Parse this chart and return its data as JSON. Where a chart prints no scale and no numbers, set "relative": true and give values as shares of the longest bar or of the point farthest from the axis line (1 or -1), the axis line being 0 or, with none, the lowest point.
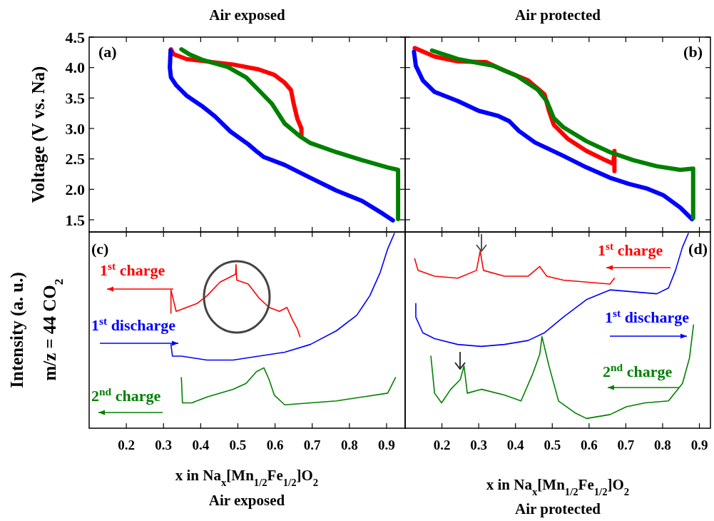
{
  "chart_data": [
    {
      "type": "line",
      "title": "Air exposed",
      "ylabel": "Voltage (V vs. Na)",
      "annotations": [
        "(a)"
      ],
      "xlim": [
        0.1,
        0.95
      ],
      "xticks": [
        0.2,
        0.3,
        0.4,
        0.5,
        0.6,
        0.7,
        0.8,
        0.9
      ],
      "ylim": [
        1.3,
        4.5
      ],
      "yticks": [
        {
          "value": 1.5,
          "label": "1.5"
        },
        {
          "value": 2,
          "label": "2.0"
        },
        {
          "value": 2.5,
          "label": "2.5"
        },
        {
          "value": 3,
          "label": "3.0"
        },
        {
          "value": 3.5,
          "label": "3.5"
        },
        {
          "value": 4,
          "label": "4.0"
        },
        {
          "value": 4.5,
          "label": "4.5"
        }
      ],
      "tick_labels": "y",
      "series": [
        {
          "color": "#ff0000",
          "x": [
            0.32,
            0.327,
            0.362,
            0.417,
            0.487,
            0.556,
            0.598,
            0.626,
            0.643,
            0.65,
            0.66,
            0.671,
            0.671
          ],
          "values": [
            4.3,
            4.22,
            4.14,
            4.1,
            4.05,
            3.97,
            3.88,
            3.75,
            3.63,
            3.41,
            3.16,
            3.0,
            2.87
          ]
        },
        {
          "color": "#0000ff",
          "x": [
            0.319,
            0.317,
            0.32,
            0.334,
            0.362,
            0.403,
            0.438,
            0.48,
            0.528,
            0.553,
            0.57,
            0.626,
            0.695,
            0.765,
            0.834,
            0.89,
            0.917
          ],
          "values": [
            4.28,
            4.0,
            3.84,
            3.71,
            3.54,
            3.37,
            3.2,
            2.95,
            2.74,
            2.61,
            2.53,
            2.4,
            2.19,
            1.98,
            1.81,
            1.6,
            1.49
          ]
        },
        {
          "color": "#008000",
          "x": [
            0.931,
            0.931,
            0.903,
            0.834,
            0.765,
            0.695,
            0.667,
            0.626,
            0.591,
            0.556,
            0.522,
            0.473,
            0.403,
            0.369,
            0.348
          ],
          "values": [
            1.51,
            2.32,
            2.36,
            2.48,
            2.61,
            2.76,
            2.87,
            3.08,
            3.41,
            3.63,
            3.84,
            4.01,
            4.13,
            4.22,
            4.3
          ]
        }
      ]
    },
    {
      "type": "line",
      "title": "Air protected",
      "annotations": [
        "(b)"
      ],
      "xlim": [
        0.1,
        0.93
      ],
      "xticks": [
        0.2,
        0.3,
        0.4,
        0.5,
        0.6,
        0.7,
        0.8,
        0.9
      ],
      "ylim": [
        1.3,
        4.5
      ],
      "yticks": [
        1.5,
        2,
        2.5,
        3,
        3.5,
        4,
        4.5
      ],
      "tick_labels": false,
      "series": [
        {
          "color": "#ff0000",
          "x": [
            0.126,
            0.18,
            0.243,
            0.32,
            0.37,
            0.434,
            0.479,
            0.491,
            0.504,
            0.542,
            0.593,
            0.644,
            0.666,
            0.669,
            0.669
          ],
          "values": [
            4.32,
            4.18,
            4.1,
            4.09,
            3.95,
            3.79,
            3.56,
            3.29,
            3.06,
            2.83,
            2.63,
            2.48,
            2.42,
            2.63,
            2.3
          ]
        },
        {
          "color": "#0000ff",
          "x": [
            0.124,
            0.129,
            0.148,
            0.18,
            0.243,
            0.3,
            0.351,
            0.383,
            0.409,
            0.453,
            0.53,
            0.593,
            0.657,
            0.708,
            0.759,
            0.803,
            0.848,
            0.88
          ],
          "values": [
            4.26,
            4.03,
            3.79,
            3.6,
            3.45,
            3.29,
            3.21,
            3.12,
            2.96,
            2.77,
            2.55,
            2.36,
            2.19,
            2.09,
            2.01,
            1.9,
            1.7,
            1.51
          ]
        },
        {
          "color": "#008000",
          "x": [
            0.883,
            0.883,
            0.848,
            0.784,
            0.72,
            0.657,
            0.593,
            0.53,
            0.504,
            0.485,
            0.46,
            0.402,
            0.339,
            0.243,
            0.173
          ],
          "values": [
            1.53,
            2.34,
            2.32,
            2.38,
            2.48,
            2.61,
            2.79,
            3.02,
            3.17,
            3.45,
            3.64,
            3.87,
            4.03,
            4.14,
            4.28
          ]
        }
      ]
    },
    {
      "type": "line",
      "relative": true,
      "xlabel": "x in Na$_{x}$[Mn$_{1/2}$Fe$_{1/2}$]O$_{2}$",
      "ylabel": "Intensity (a. u.)",
      "annotations": [
        "(c)",
        "m/z = 44 CO$_{2}$",
        "Air exposed"
      ],
      "xlim": [
        0.1,
        0.95
      ],
      "xticks": [
        0.2,
        0.3,
        0.4,
        0.5,
        0.6,
        0.7,
        0.8,
        0.9
      ],
      "tick_labels": "x",
      "series": [
        {
          "name": "1$^{st}$ charge",
          "color": "#ff0000",
          "x": [
            0.32,
            0.32,
            0.334,
            0.362,
            0.39,
            0.417,
            0.452,
            0.494,
            0.495,
            0.497,
            0.528,
            0.556,
            0.584,
            0.612,
            0.632,
            0.646,
            0.66,
            0.667
          ],
          "values": [
            0.59,
            0.71,
            0.6,
            0.62,
            0.64,
            0.68,
            0.75,
            0.79,
            0.84,
            0.76,
            0.74,
            0.67,
            0.62,
            0.6,
            0.62,
            0.56,
            0.51,
            0.47
          ]
        },
        {
          "name": "1$^{st}$ discharge",
          "color": "#0000ff",
          "x": [
            0.32,
            0.324,
            0.348,
            0.417,
            0.487,
            0.556,
            0.626,
            0.695,
            0.765,
            0.82,
            0.855,
            0.883,
            0.903,
            0.921
          ],
          "values": [
            0.43,
            0.37,
            0.37,
            0.35,
            0.35,
            0.37,
            0.39,
            0.43,
            0.5,
            0.58,
            0.68,
            0.8,
            0.92,
            1.0
          ]
        },
        {
          "name": "2$^{nd}$ charge",
          "color": "#008000",
          "x": [
            0.924,
            0.903,
            0.834,
            0.765,
            0.695,
            0.626,
            0.598,
            0.584,
            0.57,
            0.55,
            0.522,
            0.487,
            0.417,
            0.376,
            0.351,
            0.348
          ],
          "values": [
            0.26,
            0.18,
            0.16,
            0.14,
            0.13,
            0.12,
            0.17,
            0.25,
            0.31,
            0.29,
            0.23,
            0.2,
            0.16,
            0.13,
            0.13,
            0.26
          ]
        }
      ]
    },
    {
      "type": "line",
      "relative": true,
      "xlabel": "x in Na$_{x}$[Mn$_{1/2}$Fe$_{1/2}$]O$_{2}$",
      "annotations": [
        "(d)",
        "Air protected"
      ],
      "xlim": [
        0.1,
        0.93
      ],
      "xticks": [
        0.2,
        0.3,
        0.4,
        0.5,
        0.6,
        0.7,
        0.8,
        0.9
      ],
      "tick_labels": "x",
      "series": [
        {
          "name": "1$^{st}$ charge",
          "color": "#ff0000",
          "x": [
            0.126,
            0.135,
            0.18,
            0.243,
            0.294,
            0.304,
            0.313,
            0.37,
            0.434,
            0.466,
            0.485,
            0.53,
            0.593,
            0.657,
            0.669
          ],
          "values": [
            0.87,
            0.81,
            0.78,
            0.77,
            0.81,
            0.91,
            0.81,
            0.78,
            0.78,
            0.83,
            0.78,
            0.76,
            0.75,
            0.74,
            0.77
          ]
        },
        {
          "name": "1$^{st}$ discharge",
          "color": "#0000ff",
          "x": [
            0.129,
            0.129,
            0.148,
            0.18,
            0.243,
            0.307,
            0.37,
            0.434,
            0.479,
            0.53,
            0.593,
            0.657,
            0.72,
            0.784,
            0.816,
            0.835,
            0.854,
            0.87
          ],
          "values": [
            0.64,
            0.57,
            0.49,
            0.46,
            0.43,
            0.42,
            0.43,
            0.45,
            0.49,
            0.57,
            0.66,
            0.71,
            0.7,
            0.69,
            0.72,
            0.81,
            0.93,
            1.0
          ]
        },
        {
          "name": "2$^{nd}$ charge",
          "color": "#008000",
          "x": [
            0.884,
            0.873,
            0.854,
            0.816,
            0.752,
            0.701,
            0.657,
            0.593,
            0.561,
            0.517,
            0.491,
            0.472,
            0.466,
            0.447,
            0.415,
            0.37,
            0.307,
            0.269,
            0.26,
            0.25,
            0.224,
            0.199,
            0.18,
            0.17
          ],
          "values": [
            0.53,
            0.36,
            0.23,
            0.14,
            0.13,
            0.11,
            0.07,
            0.05,
            0.08,
            0.14,
            0.32,
            0.47,
            0.38,
            0.28,
            0.14,
            0.17,
            0.2,
            0.18,
            0.32,
            0.25,
            0.2,
            0.13,
            0.18,
            0.37
          ]
        }
      ]
    }
  ]
}
